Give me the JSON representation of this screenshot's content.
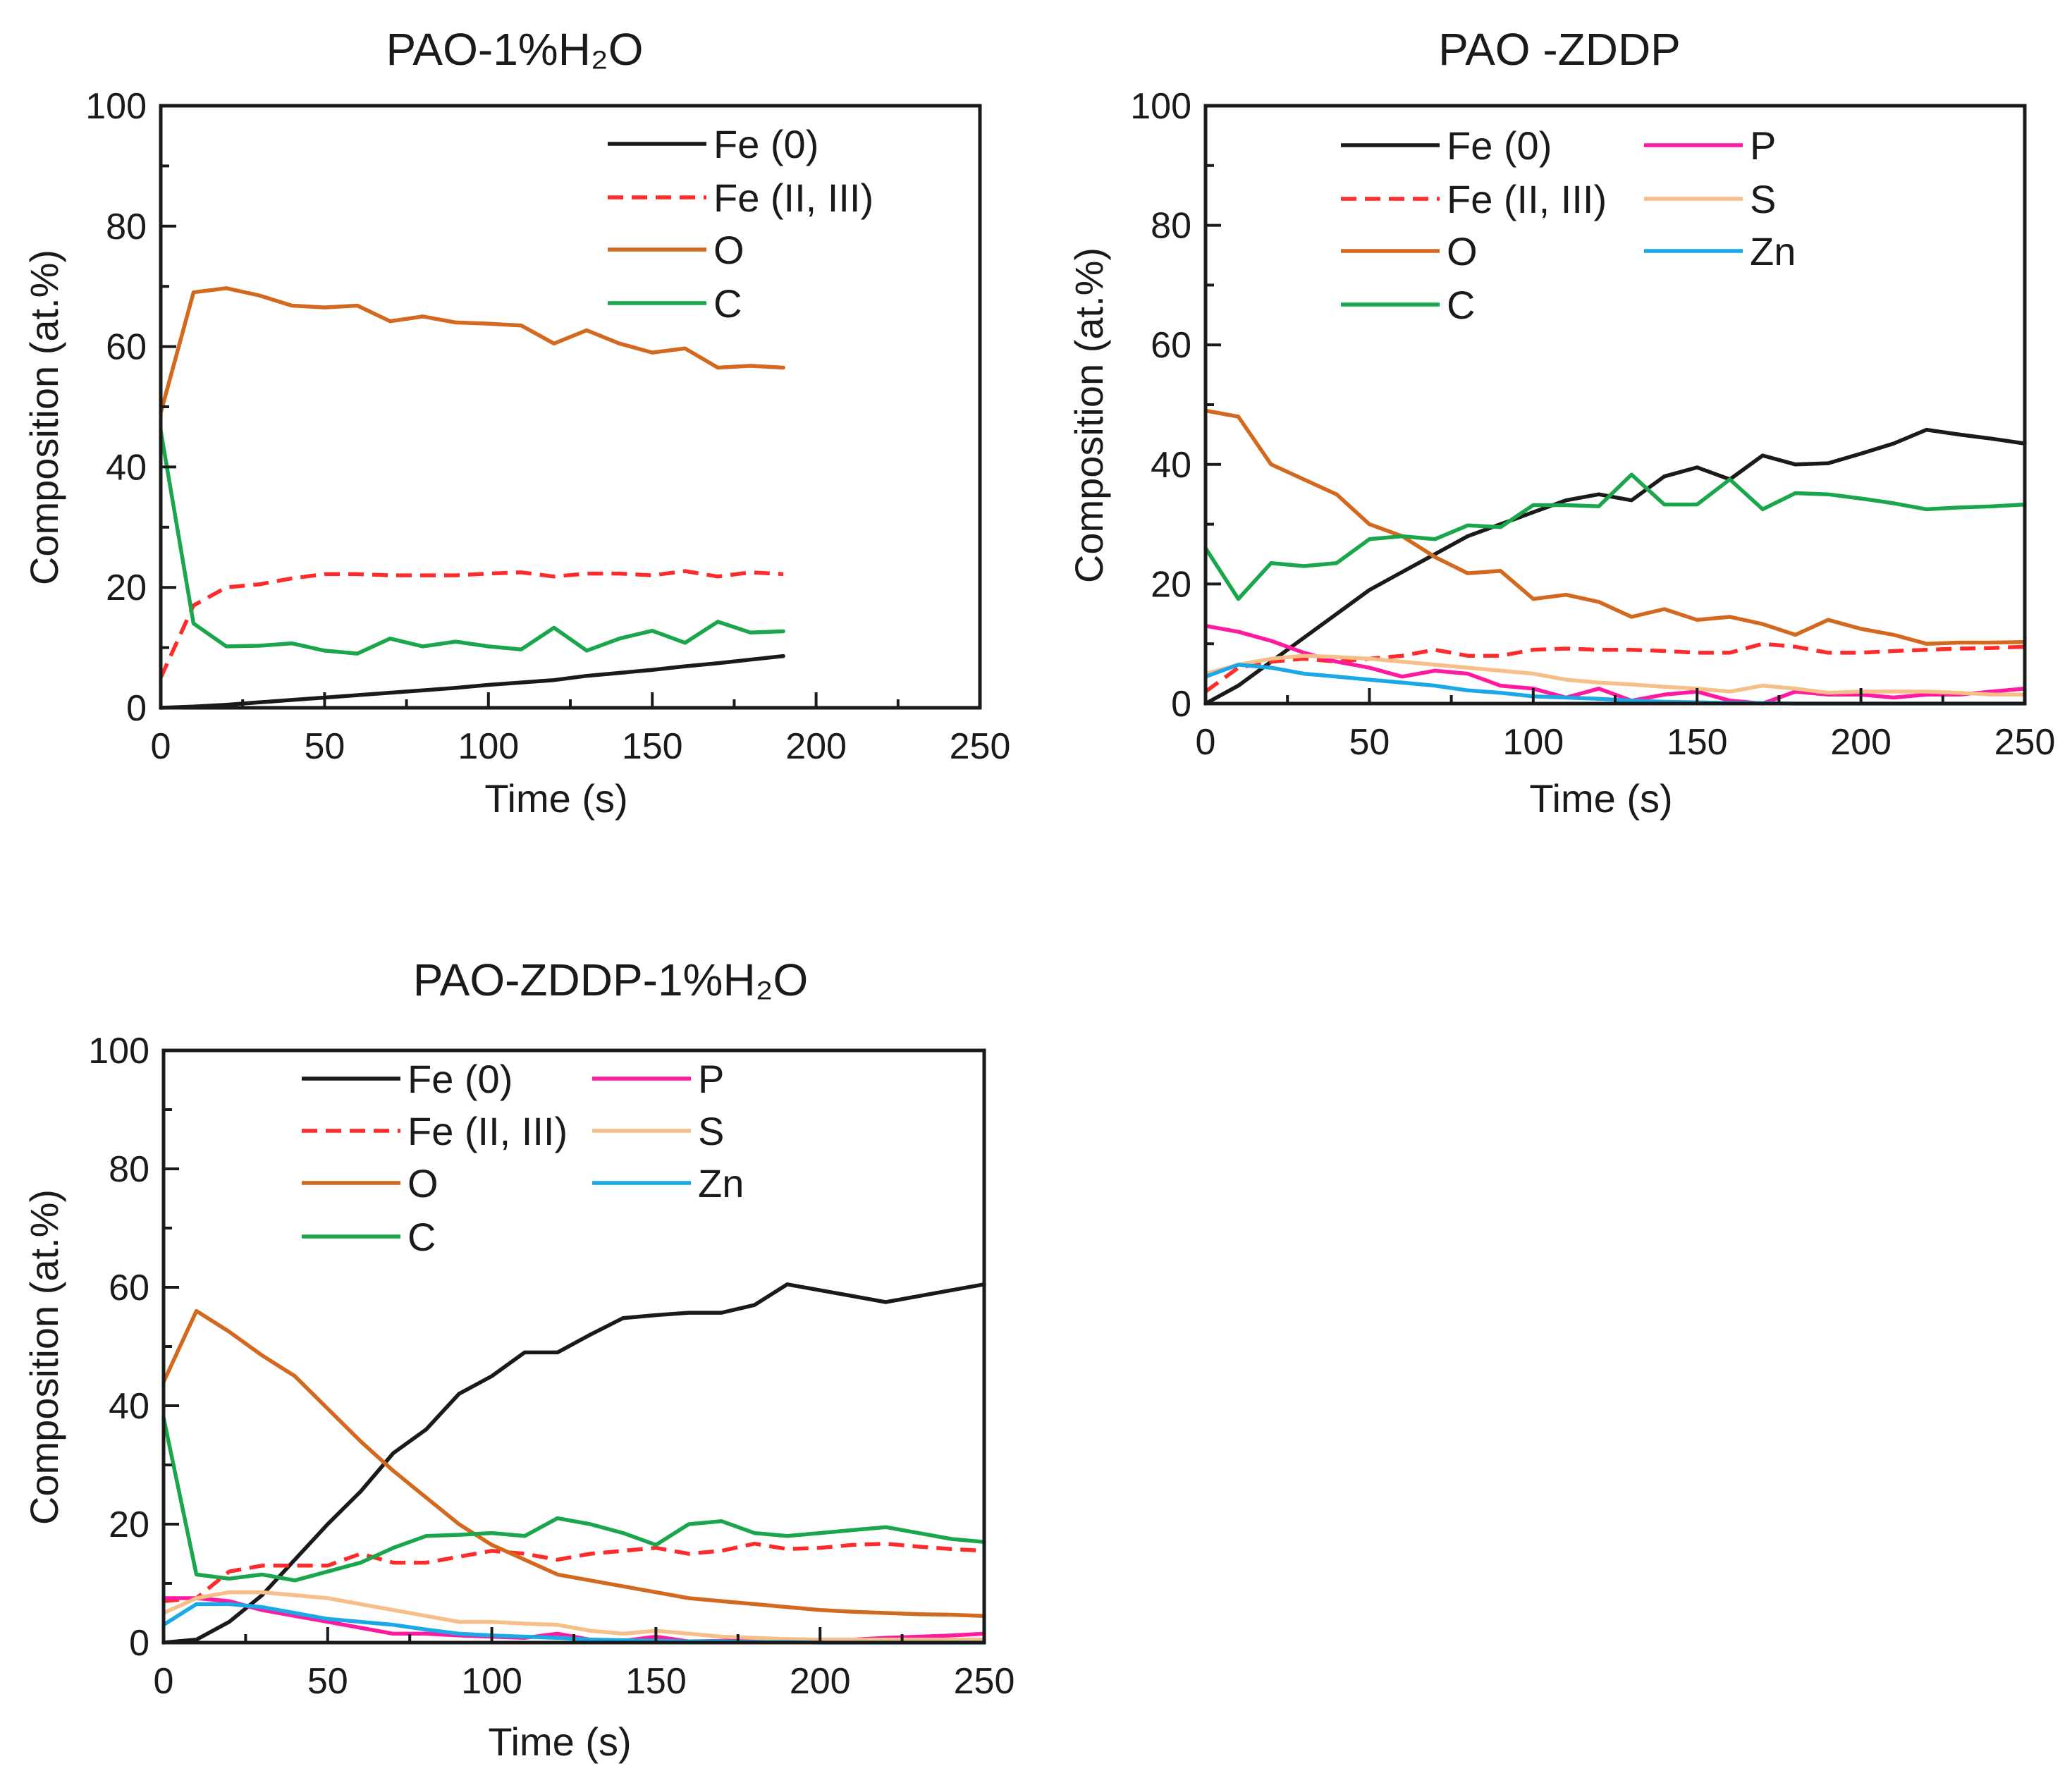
{
  "chart_data": [
    {
      "type": "line",
      "title": "PAO-1%H₂O",
      "xlabel": "Time (s)",
      "ylabel": "Composition (at.%)",
      "xlim": [
        0,
        250
      ],
      "ylim": [
        0,
        100
      ],
      "xticks": [
        "0",
        "50",
        "100",
        "150",
        "200",
        "250"
      ],
      "yticks": [
        "0",
        "20",
        "40",
        "60",
        "80",
        "100"
      ],
      "legend_position": "top-right",
      "series": [
        {
          "name": "Fe (0)",
          "color": "#1a1a1a",
          "dash": "solid",
          "x": [
            0,
            10,
            20,
            30,
            40,
            50,
            60,
            70,
            80,
            90,
            100,
            110,
            120,
            130,
            140,
            150,
            160,
            170,
            180,
            190
          ],
          "y": [
            0,
            0.2,
            0.5,
            0.9,
            1.3,
            1.7,
            2.1,
            2.5,
            2.9,
            3.3,
            3.8,
            4.2,
            4.6,
            5.3,
            5.8,
            6.3,
            6.9,
            7.4,
            8.0,
            8.6
          ]
        },
        {
          "name": "Fe (II, III)",
          "color": "#ff2a2a",
          "dash": "dashed",
          "x": [
            0,
            10,
            20,
            30,
            40,
            50,
            60,
            70,
            80,
            90,
            100,
            110,
            120,
            130,
            140,
            150,
            160,
            170,
            180,
            190
          ],
          "y": [
            5,
            17,
            20,
            20.5,
            21.5,
            22.2,
            22.2,
            22,
            22,
            22,
            22.3,
            22.5,
            21.8,
            22.3,
            22.3,
            22,
            22.7,
            21.8,
            22.5,
            22.2
          ]
        },
        {
          "name": "O",
          "color": "#d2691e",
          "dash": "solid",
          "x": [
            0,
            10,
            20,
            30,
            40,
            50,
            60,
            70,
            80,
            90,
            100,
            110,
            120,
            130,
            140,
            150,
            160,
            170,
            180,
            190
          ],
          "y": [
            49,
            69,
            69.7,
            68.5,
            66.8,
            66.5,
            66.8,
            64.2,
            65,
            64,
            63.8,
            63.5,
            60.5,
            62.7,
            60.5,
            59,
            59.7,
            56.5,
            56.8,
            56.5
          ]
        },
        {
          "name": "C",
          "color": "#1aa64b",
          "dash": "solid",
          "x": [
            0,
            10,
            20,
            30,
            40,
            50,
            60,
            70,
            80,
            90,
            100,
            110,
            120,
            130,
            140,
            150,
            160,
            170,
            180,
            190
          ],
          "y": [
            46,
            14,
            10.2,
            10.3,
            10.7,
            9.5,
            9,
            11.5,
            10.2,
            11,
            10.2,
            9.7,
            13.3,
            9.5,
            11.5,
            12.8,
            10.8,
            14.3,
            12.5,
            12.7
          ]
        }
      ]
    },
    {
      "type": "line",
      "title": "PAO -ZDDP",
      "xlabel": "Time (s)",
      "ylabel": "Composition (at.%)",
      "xlim": [
        0,
        250
      ],
      "ylim": [
        0,
        100
      ],
      "xticks": [
        "0",
        "50",
        "100",
        "150",
        "200",
        "250"
      ],
      "yticks": [
        "0",
        "20",
        "40",
        "60",
        "80",
        "100"
      ],
      "legend_position": "top",
      "series": [
        {
          "name": "Fe (0)",
          "color": "#1a1a1a",
          "dash": "solid",
          "x": [
            0,
            10,
            20,
            30,
            40,
            50,
            60,
            70,
            80,
            90,
            100,
            110,
            120,
            130,
            140,
            150,
            160,
            170,
            180,
            190,
            200,
            210,
            220,
            230,
            240,
            250
          ],
          "y": [
            0,
            3,
            7,
            11,
            15,
            19,
            22,
            25,
            28,
            30,
            32,
            34,
            35,
            34,
            38,
            39.5,
            37.5,
            41.5,
            40,
            40.2,
            41.8,
            43.5,
            45.8,
            45,
            44.3,
            43.5
          ]
        },
        {
          "name": "Fe (II, III)",
          "color": "#ff2a2a",
          "dash": "dashed",
          "x": [
            0,
            10,
            20,
            30,
            40,
            50,
            60,
            70,
            80,
            90,
            100,
            110,
            120,
            130,
            140,
            150,
            160,
            170,
            180,
            190,
            200,
            210,
            220,
            230,
            240,
            250
          ],
          "y": [
            2,
            6,
            7,
            7.5,
            7,
            7.5,
            8,
            9,
            8,
            8,
            9,
            9.2,
            9,
            9,
            8.8,
            8.5,
            8.5,
            10,
            9.5,
            8.5,
            8.5,
            8.8,
            9,
            9.2,
            9.3,
            9.5
          ]
        },
        {
          "name": "O",
          "color": "#d2691e",
          "dash": "solid",
          "x": [
            0,
            10,
            20,
            30,
            40,
            50,
            60,
            70,
            80,
            90,
            100,
            110,
            120,
            130,
            140,
            150,
            160,
            170,
            180,
            190,
            200,
            210,
            220,
            230,
            240,
            250
          ],
          "y": [
            49,
            48,
            40,
            37.5,
            35,
            30,
            28,
            24.5,
            21.8,
            22.2,
            17.5,
            18.2,
            17,
            14.5,
            15.8,
            14,
            14.5,
            13.3,
            11.5,
            14,
            12.5,
            11.5,
            10,
            10.2,
            10.2,
            10.3
          ]
        },
        {
          "name": "C",
          "color": "#1aa64b",
          "dash": "solid",
          "x": [
            0,
            10,
            20,
            30,
            40,
            50,
            60,
            70,
            80,
            90,
            100,
            110,
            120,
            130,
            140,
            150,
            160,
            170,
            180,
            190,
            200,
            210,
            220,
            230,
            240,
            250
          ],
          "y": [
            26,
            17.5,
            23.5,
            23,
            23.5,
            27.5,
            28,
            27.5,
            29.8,
            29.5,
            33.2,
            33.2,
            33,
            38.3,
            33.3,
            33.3,
            37.5,
            32.5,
            35.2,
            35,
            34.3,
            33.5,
            32.5,
            32.8,
            33,
            33.3
          ]
        },
        {
          "name": "P",
          "color": "#ff1aa0",
          "dash": "solid",
          "x": [
            0,
            10,
            20,
            30,
            40,
            50,
            60,
            70,
            80,
            90,
            100,
            110,
            120,
            130,
            140,
            150,
            160,
            170,
            180,
            190,
            200,
            210,
            220,
            230,
            240,
            250
          ],
          "y": [
            13,
            12,
            10.5,
            8.5,
            7,
            6,
            4.5,
            5.5,
            5,
            3,
            2.5,
            1,
            2.5,
            0.5,
            1.5,
            2,
            0.5,
            0,
            2,
            1.5,
            1.5,
            1,
            1.5,
            1.5,
            2,
            2.5
          ]
        },
        {
          "name": "S",
          "color": "#f5bf87",
          "dash": "solid",
          "x": [
            0,
            10,
            20,
            30,
            40,
            50,
            60,
            70,
            80,
            90,
            100,
            110,
            120,
            130,
            140,
            150,
            160,
            170,
            180,
            190,
            200,
            210,
            220,
            230,
            240,
            250
          ],
          "y": [
            5,
            6.5,
            7.5,
            8,
            7.8,
            7.5,
            7,
            6.5,
            6,
            5.5,
            5,
            4,
            3.5,
            3.2,
            2.8,
            2.5,
            2,
            3,
            2.5,
            1.8,
            2,
            2,
            2,
            1.8,
            1.5,
            1.5
          ]
        },
        {
          "name": "Zn",
          "color": "#1aa8e6",
          "dash": "solid",
          "x": [
            0,
            10,
            20,
            30,
            40,
            50,
            60,
            70,
            80,
            90,
            100,
            110,
            120,
            130,
            140,
            150,
            160,
            170,
            180,
            190,
            200,
            210,
            220,
            230,
            240,
            250
          ],
          "y": [
            4.5,
            6.5,
            6,
            5,
            4.5,
            4,
            3.5,
            3,
            2.2,
            1.8,
            1.2,
            1,
            0.8,
            0.5,
            0.3,
            0.2,
            0.1,
            0.1,
            0,
            0,
            0,
            0,
            0,
            0,
            0,
            0
          ]
        }
      ]
    },
    {
      "type": "line",
      "title": "PAO-ZDDP-1%H₂O",
      "xlabel": "Time (s)",
      "ylabel": "Composition (at.%)",
      "xlim": [
        0,
        250
      ],
      "ylim": [
        0,
        100
      ],
      "xticks": [
        "0",
        "50",
        "100",
        "150",
        "200",
        "250"
      ],
      "yticks": [
        "0",
        "20",
        "40",
        "60",
        "80",
        "100"
      ],
      "legend_position": "top",
      "series": [
        {
          "name": "Fe (0)",
          "color": "#1a1a1a",
          "dash": "solid",
          "x": [
            0,
            10,
            20,
            30,
            40,
            50,
            60,
            70,
            80,
            90,
            100,
            110,
            120,
            130,
            140,
            150,
            160,
            170,
            180,
            190,
            200,
            210,
            220,
            230,
            240,
            250
          ],
          "y": [
            0,
            0.5,
            3.5,
            8,
            14,
            20,
            25.5,
            32,
            36,
            42,
            45,
            49,
            49,
            52,
            54.8,
            55.3,
            55.7,
            55.7,
            57,
            60.5,
            59.5,
            58.5,
            57.5,
            58.5,
            59.5,
            60.5
          ]
        },
        {
          "name": "Fe (II, III)",
          "color": "#ff2a2a",
          "dash": "dashed",
          "x": [
            0,
            10,
            20,
            30,
            40,
            50,
            60,
            70,
            80,
            90,
            100,
            110,
            120,
            130,
            140,
            150,
            160,
            170,
            180,
            190,
            200,
            210,
            220,
            230,
            240,
            250
          ],
          "y": [
            7,
            7.5,
            12,
            13,
            13,
            13,
            15,
            13.5,
            13.5,
            14.5,
            15.5,
            15,
            14,
            15,
            15.5,
            16,
            15,
            15.5,
            16.7,
            15.8,
            16,
            16.5,
            16.7,
            16.2,
            15.8,
            15.5
          ]
        },
        {
          "name": "O",
          "color": "#d2691e",
          "dash": "solid",
          "x": [
            0,
            10,
            20,
            30,
            40,
            50,
            60,
            70,
            80,
            90,
            100,
            110,
            120,
            130,
            140,
            150,
            160,
            170,
            180,
            190,
            200,
            210,
            220,
            230,
            240,
            250
          ],
          "y": [
            44,
            56,
            52.5,
            48.5,
            45,
            39.5,
            34,
            29,
            24.5,
            20,
            16.5,
            14,
            11.5,
            10.5,
            9.5,
            8.5,
            7.5,
            7,
            6.5,
            6,
            5.5,
            5.2,
            5,
            4.8,
            4.7,
            4.5
          ]
        },
        {
          "name": "C",
          "color": "#1aa64b",
          "dash": "solid",
          "x": [
            0,
            10,
            20,
            30,
            40,
            50,
            60,
            70,
            80,
            90,
            100,
            110,
            120,
            130,
            140,
            150,
            160,
            170,
            180,
            190,
            200,
            210,
            220,
            230,
            240,
            250
          ],
          "y": [
            38,
            11.5,
            10.8,
            11.5,
            10.5,
            12,
            13.5,
            16,
            18,
            18.2,
            18.5,
            18,
            21,
            20,
            18.5,
            16.5,
            20,
            20.5,
            18.5,
            18,
            18.5,
            19,
            19.5,
            18.5,
            17.5,
            17
          ]
        },
        {
          "name": "P",
          "color": "#ff1aa0",
          "dash": "solid",
          "x": [
            0,
            10,
            20,
            30,
            40,
            50,
            60,
            70,
            80,
            90,
            100,
            110,
            120,
            130,
            140,
            150,
            160,
            170,
            180,
            190,
            200,
            210,
            220,
            230,
            240,
            250
          ],
          "y": [
            7.5,
            7.5,
            7,
            5.5,
            4.5,
            3.5,
            2.5,
            1.5,
            1.5,
            1.2,
            1,
            0.8,
            1.5,
            0.5,
            0.3,
            1,
            0.2,
            0.3,
            0.5,
            0.3,
            0.5,
            0.5,
            0.8,
            1,
            1.2,
            1.5
          ]
        },
        {
          "name": "S",
          "color": "#f5bf87",
          "dash": "solid",
          "x": [
            0,
            10,
            20,
            30,
            40,
            50,
            60,
            70,
            80,
            90,
            100,
            110,
            120,
            130,
            140,
            150,
            160,
            170,
            180,
            190,
            200,
            210,
            220,
            230,
            240,
            250
          ],
          "y": [
            5,
            7.5,
            8.5,
            8.5,
            8,
            7.5,
            6.5,
            5.5,
            4.5,
            3.5,
            3.5,
            3.2,
            3,
            2,
            1.5,
            2,
            1.5,
            1,
            0.8,
            0.6,
            0.5,
            0.5,
            0.5,
            0.5,
            0.5,
            0.5
          ]
        },
        {
          "name": "Zn",
          "color": "#1aa8e6",
          "dash": "solid",
          "x": [
            0,
            10,
            20,
            30,
            40,
            50,
            60,
            70,
            80,
            90,
            100,
            110,
            120,
            130,
            140,
            150,
            160,
            170,
            180,
            190,
            200,
            210,
            220,
            230,
            240,
            250
          ],
          "y": [
            3,
            6.5,
            6.5,
            6,
            5,
            4,
            3.5,
            3,
            2.2,
            1.5,
            1.2,
            1,
            0.8,
            0.5,
            0.4,
            0.3,
            0.2,
            0.2,
            0.1,
            0.1,
            0,
            0,
            0,
            0,
            0,
            0
          ]
        }
      ]
    }
  ]
}
